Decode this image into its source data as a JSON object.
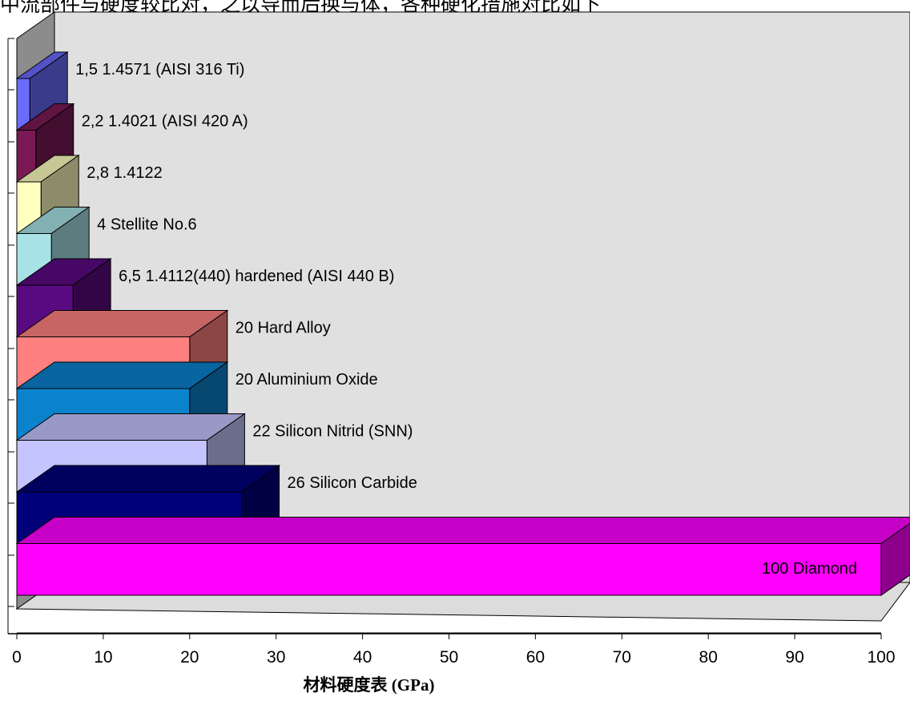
{
  "header": {
    "top_text": "中流部件与硬度较比对，之以导而后换与体，各种硬化措施对比如下"
  },
  "chart_data": {
    "type": "bar",
    "orientation": "horizontal",
    "3d": true,
    "xlabel": "材料硬度表 (GPa)",
    "xlim": [
      0,
      100
    ],
    "xticks": [
      "0",
      "10",
      "20",
      "30",
      "40",
      "50",
      "60",
      "70",
      "80",
      "90",
      "100"
    ],
    "grid": false,
    "legend": "none",
    "bars": [
      {
        "label": "1,5   1.4571 (AISI 316 Ti)",
        "value": 1.5,
        "color": "#6b6bff"
      },
      {
        "label": "2,2   1.4021 (AISI 420 A)",
        "value": 2.2,
        "color": "#7a1a55"
      },
      {
        "label": "2,8   1.4122",
        "value": 2.8,
        "color": "#ffffc0"
      },
      {
        "label": "4   Stellite No.6",
        "value": 4,
        "color": "#a8e2e6"
      },
      {
        "label": "6,5  1.4112(440) hardened (AISI 440 B)",
        "value": 6.5,
        "color": "#5a0a80"
      },
      {
        "label": "20 Hard Alloy",
        "value": 20,
        "color": "#ff8080"
      },
      {
        "label": "20 Aluminium Oxide",
        "value": 20,
        "color": "#0a82cc"
      },
      {
        "label": "22 Silicon Nitrid (SNN)",
        "value": 22,
        "color": "#c4c4ff"
      },
      {
        "label": "26   Silicon Carbide",
        "value": 26,
        "color": "#00007a"
      },
      {
        "label": "100   Diamond",
        "value": 100,
        "color": "#ff00ff"
      }
    ]
  }
}
